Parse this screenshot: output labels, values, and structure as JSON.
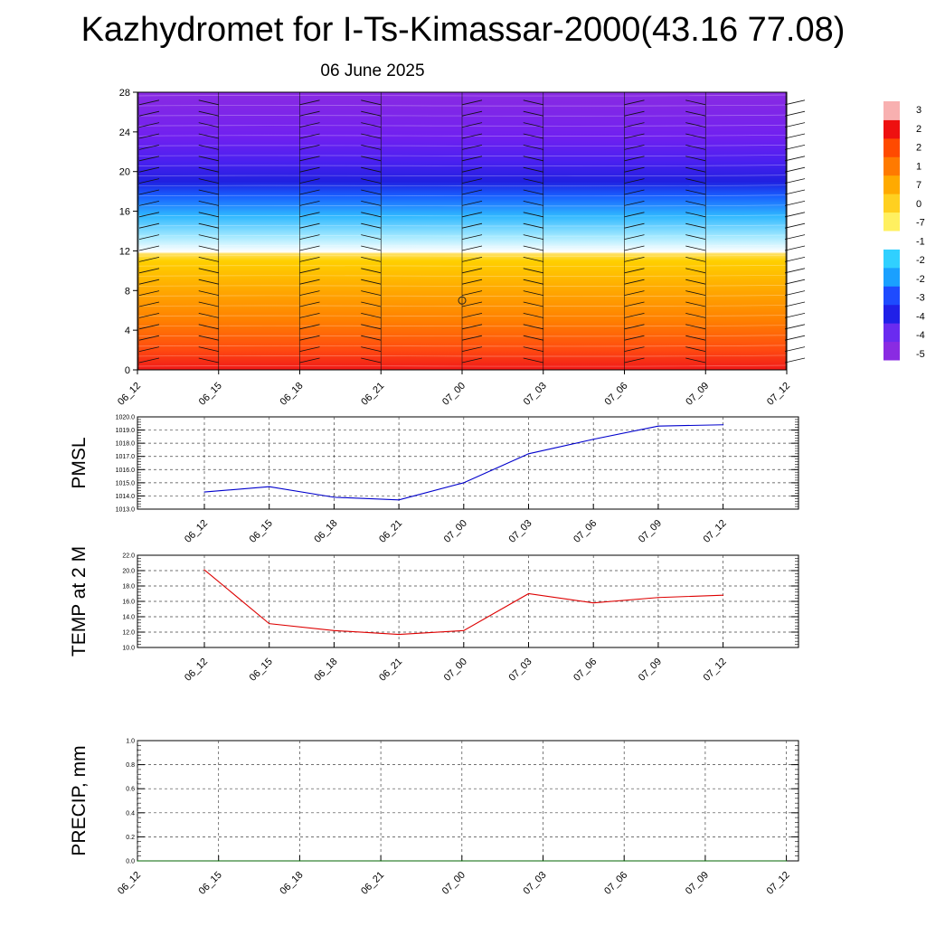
{
  "title": "Kazhydromet for I-Ts-Kimassar-2000(43.16 77.08)",
  "subtitle": "06 June 2025",
  "chart_data": [
    {
      "type": "heatmap",
      "name": "temperature-wind cross-section",
      "x_ticks": [
        "06_12",
        "06_15",
        "06_18",
        "06_21",
        "07_00",
        "07_03",
        "07_06",
        "07_09",
        "07_12"
      ],
      "y_ticks": [
        "0",
        "4",
        "8",
        "12",
        "16",
        "20",
        "24",
        "28"
      ],
      "ylim": [
        0,
        28
      ],
      "colorbar_labels": [
        "3",
        "2",
        "2",
        "1",
        "7",
        "0",
        "-7",
        "-1",
        "-2",
        "-2",
        "-3",
        "-4",
        "-4",
        "-5"
      ],
      "colormap": [
        "#8a2be2",
        "#6a2bf0",
        "#2020e8",
        "#1e4bff",
        "#1aa0ff",
        "#30d0ff",
        "#ffffff",
        "#fff060",
        "#ffd020",
        "#ffaa00",
        "#ff7a00",
        "#ff4a00",
        "#ee1010",
        "#f8b0b0"
      ],
      "layers": [
        {
          "y": 0,
          "color": "#f01818"
        },
        {
          "y": 2,
          "color": "#ff4a10"
        },
        {
          "y": 5,
          "color": "#ff8000"
        },
        {
          "y": 8,
          "color": "#ffa800"
        },
        {
          "y": 11,
          "color": "#ffd000"
        },
        {
          "y": 11.7,
          "color": "#ffe060"
        },
        {
          "y": 11.9,
          "color": "#ffffff"
        },
        {
          "y": 13.5,
          "color": "#a0e8ff"
        },
        {
          "y": 15.5,
          "color": "#30b8ff"
        },
        {
          "y": 17.5,
          "color": "#1860ff"
        },
        {
          "y": 19,
          "color": "#2020e0"
        },
        {
          "y": 21,
          "color": "#4a20f0"
        },
        {
          "y": 23.5,
          "color": "#7020f0"
        },
        {
          "y": 28,
          "color": "#8a2be2"
        }
      ]
    },
    {
      "type": "line",
      "name": "PMSL",
      "ylabel": "PMSL",
      "categories": [
        "06_12",
        "06_15",
        "06_18",
        "06_21",
        "07_00",
        "07_03",
        "07_06",
        "07_09",
        "07_12"
      ],
      "values": [
        1014.3,
        1014.7,
        1013.9,
        1013.7,
        1015.0,
        1017.2,
        1018.3,
        1019.3,
        1019.4
      ],
      "ylim": [
        1013.0,
        1020.0
      ],
      "y_ticks": [
        "1013.0",
        "1014.0",
        "1015.0",
        "1016.0",
        "1017.0",
        "1018.0",
        "1019.0",
        "1020.0"
      ],
      "color": "#0000cc",
      "grid": true
    },
    {
      "type": "line",
      "name": "TEMP at 2 M",
      "ylabel": "TEMP at 2 M",
      "categories": [
        "06_12",
        "06_15",
        "06_18",
        "06_21",
        "07_00",
        "07_03",
        "07_06",
        "07_09",
        "07_12"
      ],
      "values": [
        20.1,
        13.1,
        12.2,
        11.7,
        12.2,
        17.0,
        15.8,
        16.5,
        16.8
      ],
      "ylim": [
        10.0,
        22.0
      ],
      "y_ticks": [
        "10.0",
        "12.0",
        "14.0",
        "16.0",
        "18.0",
        "20.0",
        "22.0"
      ],
      "color": "#dd0000",
      "grid": true
    },
    {
      "type": "line",
      "name": "PRECIP, mm",
      "ylabel": "PRECIP, mm",
      "categories": [
        "06_12",
        "06_15",
        "06_18",
        "06_21",
        "07_00",
        "07_03",
        "07_06",
        "07_09",
        "07_12"
      ],
      "values": [
        0,
        0,
        0,
        0,
        0,
        0,
        0,
        0,
        0
      ],
      "ylim": [
        0.0,
        1.0
      ],
      "y_ticks": [
        "0.0",
        "0.2",
        "0.4",
        "0.6",
        "0.8",
        "1.0"
      ],
      "color": "#006600",
      "grid": true
    }
  ]
}
